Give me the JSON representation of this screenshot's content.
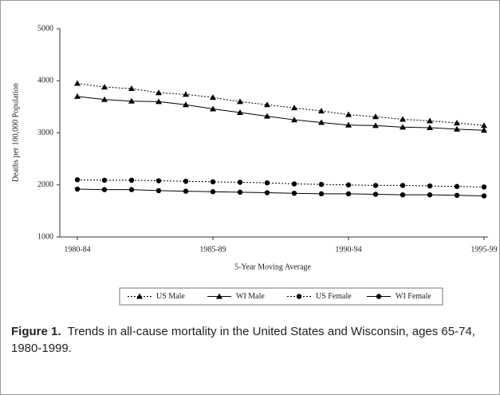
{
  "chart_data": {
    "type": "line",
    "ylabel": "Deaths per 100,000 Population",
    "xlabel": "5-Year Moving Average",
    "categories": [
      "1980-84",
      null,
      null,
      null,
      null,
      "1985-89",
      null,
      null,
      null,
      null,
      "1990-94",
      null,
      null,
      null,
      null,
      "1995-99"
    ],
    "ylim": [
      1000,
      5000
    ],
    "yticks": [
      1000,
      2000,
      3000,
      4000,
      5000
    ],
    "series": [
      {
        "name": "US Male",
        "color": "#000000",
        "marker": "triangle",
        "linestyle": "dotted",
        "values": [
          3950,
          3880,
          3850,
          3770,
          3740,
          3680,
          3600,
          3540,
          3480,
          3420,
          3350,
          3310,
          3260,
          3230,
          3190,
          3140
        ]
      },
      {
        "name": "WI Male",
        "color": "#000000",
        "marker": "triangle",
        "linestyle": "solid",
        "values": [
          3700,
          3640,
          3610,
          3600,
          3540,
          3460,
          3390,
          3320,
          3250,
          3200,
          3150,
          3140,
          3110,
          3100,
          3070,
          3050
        ]
      },
      {
        "name": "US Female",
        "color": "#000000",
        "marker": "circle",
        "linestyle": "dotted",
        "values": [
          2100,
          2090,
          2090,
          2080,
          2070,
          2060,
          2050,
          2040,
          2020,
          2010,
          2000,
          1990,
          1990,
          1980,
          1970,
          1960
        ]
      },
      {
        "name": "WI Female",
        "color": "#000000",
        "marker": "circle",
        "linestyle": "solid",
        "values": [
          1920,
          1910,
          1910,
          1890,
          1880,
          1870,
          1860,
          1850,
          1840,
          1830,
          1830,
          1820,
          1810,
          1810,
          1800,
          1790
        ]
      }
    ]
  },
  "caption": {
    "label": "Figure 1.",
    "text": "Trends in all-cause mortality in the United States and Wisconsin, ages 65-74, 1980-1999."
  }
}
